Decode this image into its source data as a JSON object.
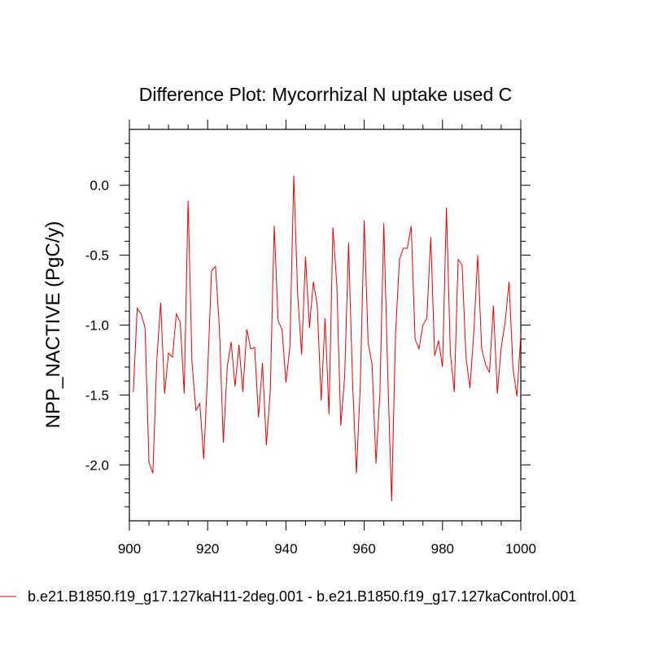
{
  "chart_data": {
    "type": "line",
    "title": "Difference Plot: Mycorrhizal N uptake used C",
    "ylabel": "NPP_NACTIVE  (PgC/y)",
    "xlabel": "",
    "xlim": [
      900,
      1000
    ],
    "ylim": [
      -2.4,
      0.4
    ],
    "x_ticks": [
      900,
      920,
      940,
      960,
      980,
      1000
    ],
    "x_tick_labels": [
      "900",
      "920",
      "940",
      "960",
      "980",
      "1000"
    ],
    "y_ticks": [
      0.0,
      -0.5,
      -1.0,
      -1.5,
      -2.0
    ],
    "y_tick_labels": [
      "0.0",
      "-0.5",
      "-1.0",
      "-1.5",
      "-2.0"
    ],
    "grid": false,
    "legend_position": "bottom",
    "line_color": "#ee0000",
    "series": [
      {
        "name": "b.e21.B1850.f19_g17.127kaH11-2deg.001 - b.e21.B1850.f19_g17.127kaControl.001",
        "x": [
          901,
          902,
          903,
          904,
          905,
          906,
          907,
          908,
          909,
          910,
          911,
          912,
          913,
          914,
          915,
          916,
          917,
          918,
          919,
          920,
          921,
          922,
          923,
          924,
          925,
          926,
          927,
          928,
          929,
          930,
          931,
          932,
          933,
          934,
          935,
          936,
          937,
          938,
          939,
          940,
          941,
          942,
          943,
          944,
          945,
          946,
          947,
          948,
          949,
          950,
          951,
          952,
          953,
          954,
          955,
          956,
          957,
          958,
          959,
          960,
          961,
          962,
          963,
          964,
          965,
          966,
          967,
          968,
          969,
          970,
          971,
          972,
          973,
          974,
          975,
          976,
          977,
          978,
          979,
          980,
          981,
          982,
          983,
          984,
          985,
          986,
          987,
          988,
          989,
          990,
          991,
          992,
          993,
          994,
          995,
          996,
          997,
          998,
          999,
          1000
        ],
        "values": [
          -1.48,
          -0.88,
          -0.92,
          -1.02,
          -1.98,
          -2.06,
          -1.25,
          -0.84,
          -1.49,
          -1.2,
          -1.23,
          -0.92,
          -0.98,
          -1.49,
          -0.11,
          -1.27,
          -1.61,
          -1.56,
          -1.96,
          -1.33,
          -0.61,
          -0.58,
          -1.02,
          -1.84,
          -1.3,
          -1.12,
          -1.44,
          -1.14,
          -1.48,
          -1.03,
          -1.17,
          -1.16,
          -1.66,
          -1.27,
          -1.86,
          -1.47,
          -0.29,
          -0.97,
          -1.03,
          -1.41,
          -1.16,
          0.07,
          -0.78,
          -1.21,
          -0.51,
          -1.02,
          -0.69,
          -0.86,
          -1.54,
          -0.95,
          -1.64,
          -0.3,
          -0.71,
          -1.72,
          -1.37,
          -0.41,
          -1.39,
          -2.06,
          -1.43,
          -0.25,
          -1.13,
          -1.28,
          -1.99,
          -1.49,
          -0.27,
          -1.34,
          -2.26,
          -1.06,
          -0.53,
          -0.45,
          -0.45,
          -0.29,
          -1.1,
          -1.17,
          -1.0,
          -0.95,
          -0.37,
          -1.22,
          -1.11,
          -1.3,
          -0.16,
          -1.2,
          -1.48,
          -0.53,
          -0.57,
          -1.23,
          -1.45,
          -1.05,
          -0.5,
          -1.17,
          -1.28,
          -1.34,
          -0.86,
          -1.49,
          -1.16,
          -0.98,
          -0.69,
          -1.31,
          -1.51,
          -1.07
        ]
      }
    ]
  }
}
